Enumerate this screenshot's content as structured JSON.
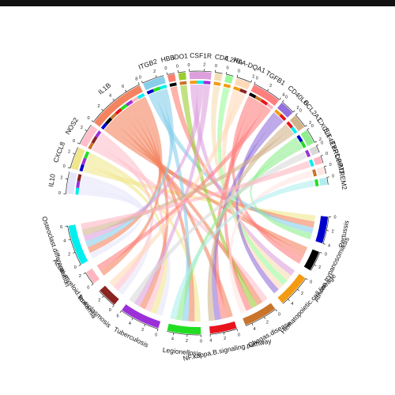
{
  "chart_data": {
    "type": "chord",
    "sector_ticks": [
      0,
      2,
      4,
      6,
      8
    ],
    "genes": [
      {
        "name": "IL10",
        "color": "#e6e6fa",
        "links": [
          9,
          6,
          7
        ]
      },
      {
        "name": "CXCL8",
        "color": "#f0e68c",
        "links": [
          0,
          6,
          5
        ]
      },
      {
        "name": "NOS2",
        "color": "#ffc0cb",
        "links": [
          3,
          7,
          6
        ]
      },
      {
        "name": "IL1B",
        "color": "#f4845f",
        "links": [
          0,
          1,
          3,
          4,
          5,
          6,
          8,
          9
        ]
      },
      {
        "name": "ITGB2",
        "color": "#87ceeb",
        "links": [
          0,
          5,
          9
        ]
      },
      {
        "name": "HBB",
        "color": "#fa8072",
        "links": [
          1
        ]
      },
      {
        "name": "IDO1",
        "color": "#9acd32",
        "links": [
          3
        ]
      },
      {
        "name": "CSF1R",
        "color": "#dda0dd",
        "links": [
          2,
          9,
          6
        ]
      },
      {
        "name": "CD4",
        "color": "#f5deb3",
        "links": [
          2
        ]
      },
      {
        "name": "IL2RA",
        "color": "#98fb98",
        "links": [
          2
        ]
      },
      {
        "name": "HLA-DQA1",
        "color": "#ffdab9",
        "links": [
          2,
          7
        ]
      },
      {
        "name": "TGFB1",
        "color": "#ff7f7f",
        "links": [
          1,
          3,
          4,
          8
        ]
      },
      {
        "name": "CD40LG",
        "color": "#9370db",
        "links": [
          2,
          4
        ]
      },
      {
        "name": "BCL2A1",
        "color": "#d2b48c",
        "links": [
          4,
          9
        ]
      },
      {
        "name": "CXCL1",
        "color": "#90ee90",
        "links": [
          0,
          5
        ]
      },
      {
        "name": "EIF4EBP1",
        "color": "#d8d8d8",
        "links": [
          6
        ]
      },
      {
        "name": "TYROBP",
        "color": "#ffb6c1",
        "links": [
          9
        ]
      },
      {
        "name": "PIM2",
        "color": "#ffe4e1",
        "links": [
          3
        ]
      },
      {
        "name": "TREM2",
        "color": "#afeeee",
        "links": [
          5
        ]
      }
    ],
    "pathways": [
      {
        "name": "Pertussis",
        "color": "#0000cd"
      },
      {
        "name": "African.trypanosomiasis",
        "color": "#000000"
      },
      {
        "name": "Hematopoietic.cell.lineage",
        "color": "#f39c12"
      },
      {
        "name": "Chagas.disease",
        "color": "#c8742a"
      },
      {
        "name": "NF.kappa.B.signaling.pathway",
        "color": "#e8141c"
      },
      {
        "name": "Legionellosis",
        "color": "#22dd22"
      },
      {
        "name": "Tuberculosis",
        "color": "#9b30d9"
      },
      {
        "name": "Toxoplasmosis",
        "color": "#8b2323"
      },
      {
        "name": "Acute.myeloid.leukemia",
        "color": "#ffb6c1"
      },
      {
        "name": "Osteoclast.differentiation",
        "color": "#00eeee"
      }
    ]
  }
}
